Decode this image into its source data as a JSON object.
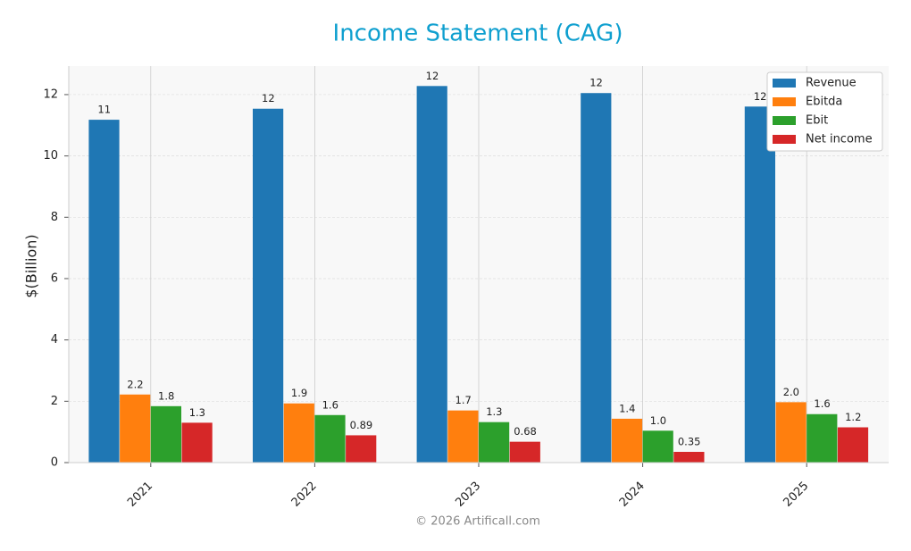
{
  "chart_data": {
    "type": "bar",
    "title": "Income Statement (CAG)",
    "y_label": "$(Billion)",
    "categories": [
      "2021",
      "2022",
      "2023",
      "2024",
      "2025"
    ],
    "series": [
      {
        "name": "Revenue",
        "color": "#1f77b4",
        "values": [
          11.18,
          11.54,
          12.28,
          12.05,
          11.61
        ],
        "value_labels": [
          "11",
          "12",
          "12",
          "12",
          "12"
        ]
      },
      {
        "name": "Ebitda",
        "color": "#ff7f0e",
        "values": [
          2.22,
          1.93,
          1.7,
          1.43,
          1.97
        ],
        "value_labels": [
          "2.2",
          "1.9",
          "1.7",
          "1.4",
          "2.0"
        ]
      },
      {
        "name": "Ebit",
        "color": "#2ca02c",
        "values": [
          1.84,
          1.55,
          1.32,
          1.04,
          1.58
        ],
        "value_labels": [
          "1.8",
          "1.6",
          "1.3",
          "1.0",
          "1.6"
        ]
      },
      {
        "name": "Net income",
        "color": "#d62728",
        "values": [
          1.3,
          0.89,
          0.68,
          0.35,
          1.15
        ],
        "value_labels": [
          "1.3",
          "0.89",
          "0.68",
          "0.35",
          "1.2"
        ]
      }
    ],
    "ylim": [
      0,
      12.93
    ],
    "yticks": [
      0,
      2,
      4,
      6,
      8,
      10,
      12
    ],
    "grid": true,
    "legend": "upper right",
    "source": "© 2026 Artificall.com"
  }
}
